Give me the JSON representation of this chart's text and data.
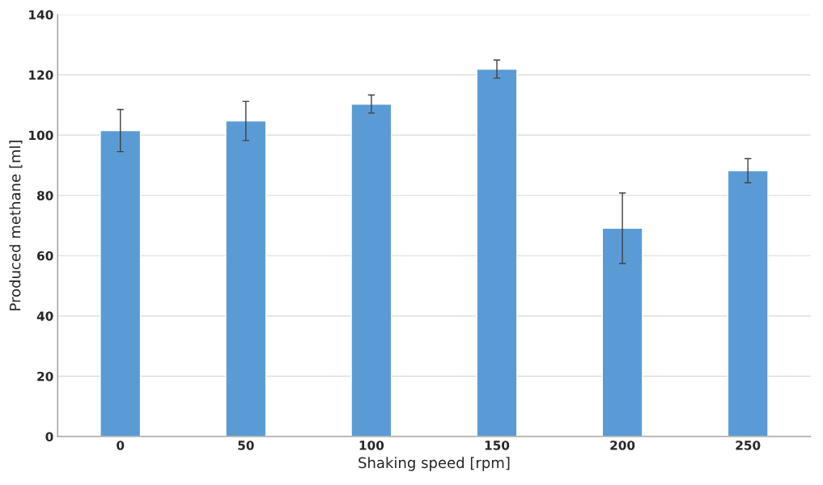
{
  "chart_data": {
    "type": "bar",
    "xlabel": "Shaking speed [rpm]",
    "ylabel": "Produced methane [ml]",
    "categories": [
      "0",
      "50",
      "100",
      "150",
      "200",
      "250"
    ],
    "values": [
      101.5,
      104.7,
      110.3,
      121.9,
      69.1,
      88.2
    ],
    "errors": [
      7,
      6.5,
      3,
      3,
      11.7,
      4
    ],
    "color": "#5b9bd5",
    "ylim": [
      0,
      140
    ],
    "yticks": [
      0,
      20,
      40,
      60,
      80,
      100,
      120,
      140
    ],
    "grid": "y"
  }
}
